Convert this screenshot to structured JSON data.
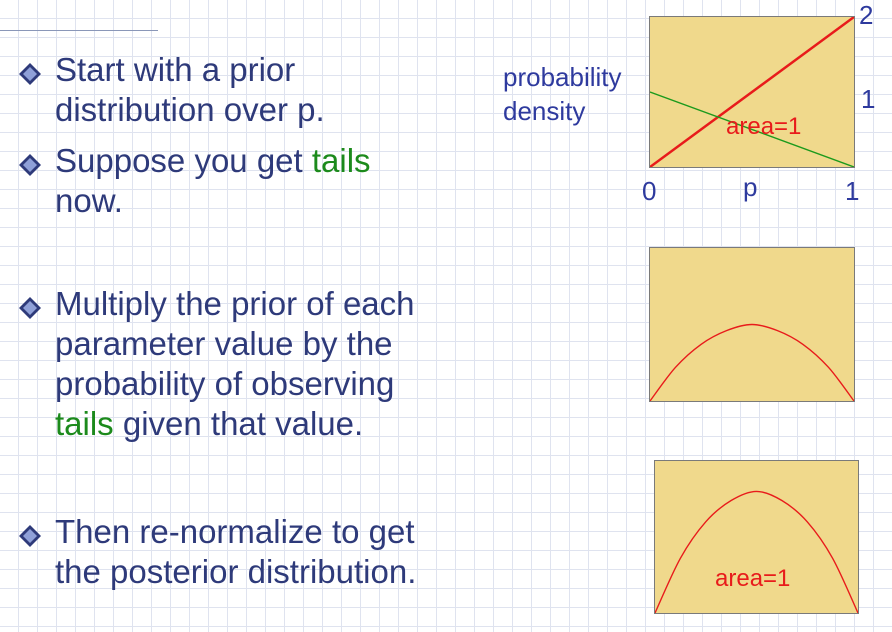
{
  "bullets": [
    {
      "parts": [
        "Start with a prior",
        "distribution over p."
      ]
    },
    {
      "parts": [
        "Suppose you get ",
        "tails",
        "now."
      ]
    },
    {
      "parts": [
        "Multiply the prior of each",
        "parameter value by the",
        "probability of observing",
        "tails",
        " given that value."
      ]
    },
    {
      "parts": [
        "Then re-normalize to get",
        "the posterior distribution."
      ]
    }
  ],
  "colors": {
    "text": "#2e3a7a",
    "highlight": "#1c8a1c",
    "plot_bg": "#f0d98c",
    "red": "#e81b1b",
    "green_line": "#1c9a1c"
  },
  "chart_data": [
    {
      "type": "line",
      "ylabel": "probability density",
      "xlabel": "p",
      "x_ticks": [
        "0",
        "1"
      ],
      "y_ticks": [
        "2",
        "1"
      ],
      "xlim": [
        0,
        1
      ],
      "ylim": [
        0,
        2
      ],
      "series": [
        {
          "x": [
            0,
            1
          ],
          "y": [
            0,
            2
          ],
          "color": "#e81b1b"
        },
        {
          "x": [
            0,
            1
          ],
          "y": [
            1,
            0
          ],
          "color": "#1c9a1c"
        }
      ],
      "annotation": "area=1"
    },
    {
      "type": "line",
      "xlim": [
        0,
        1
      ],
      "ylim": [
        0,
        1
      ],
      "series": [
        {
          "x": [
            0,
            0.125,
            0.25,
            0.375,
            0.5,
            0.625,
            0.75,
            0.875,
            1
          ],
          "y": [
            0,
            0.22,
            0.37,
            0.46,
            0.5,
            0.46,
            0.37,
            0.22,
            0
          ],
          "color": "#e81b1b"
        }
      ]
    },
    {
      "type": "line",
      "xlim": [
        0,
        1
      ],
      "ylim": [
        0,
        1
      ],
      "series": [
        {
          "x": [
            0,
            0.125,
            0.25,
            0.375,
            0.5,
            0.625,
            0.75,
            0.875,
            1
          ],
          "y": [
            0,
            0.36,
            0.6,
            0.74,
            0.8,
            0.74,
            0.6,
            0.36,
            0
          ],
          "color": "#e81b1b"
        }
      ],
      "annotation": "area=1"
    }
  ]
}
